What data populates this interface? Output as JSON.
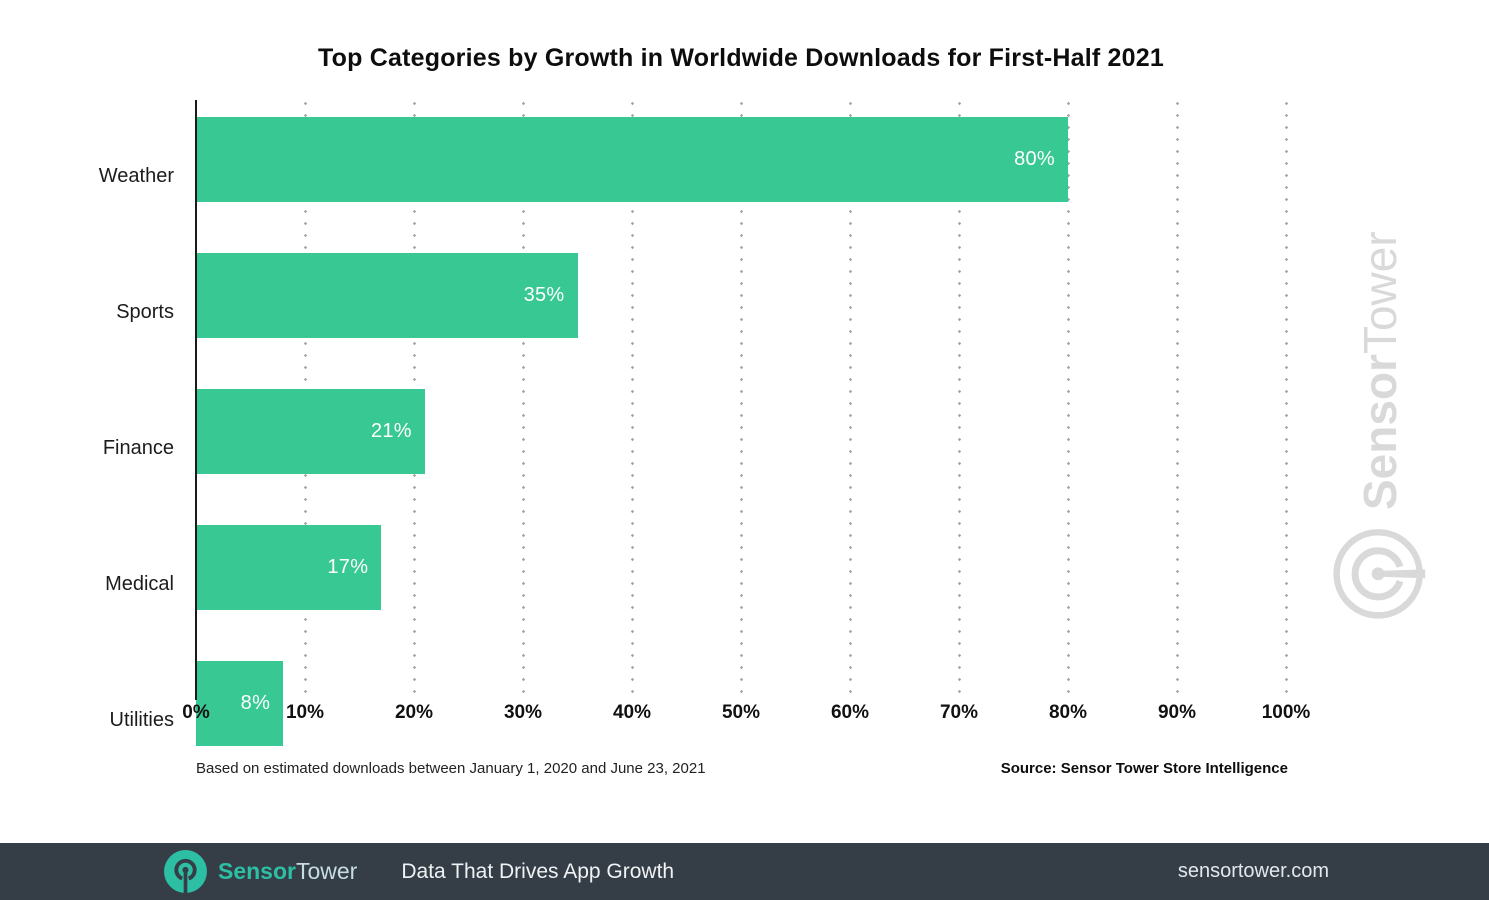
{
  "chart_data": {
    "type": "bar",
    "orientation": "horizontal",
    "title": "Top Categories by Growth in Worldwide Downloads for First-Half 2021",
    "categories": [
      "Weather",
      "Sports",
      "Finance",
      "Medical",
      "Utilities"
    ],
    "values": [
      80,
      35,
      21,
      17,
      8
    ],
    "value_labels": [
      "80%",
      "35%",
      "21%",
      "17%",
      "8%"
    ],
    "xlim": [
      0,
      100
    ],
    "x_ticks": [
      "0%",
      "10%",
      "20%",
      "30%",
      "40%",
      "50%",
      "60%",
      "70%",
      "80%",
      "90%",
      "100%"
    ],
    "grid": "dotted-vertical",
    "legend": "none",
    "bar_color": "#38c893"
  },
  "footnotes": {
    "based_on": "Based on estimated downloads between January 1, 2020 and June 23, 2021",
    "source": "Source: Sensor Tower Store Intelligence"
  },
  "watermark": {
    "logo": "sensortower-logo",
    "brand_bold": "Sensor",
    "brand_light": "Tower"
  },
  "footer": {
    "logo": "sensortower-logo",
    "brand_bold": "Sensor",
    "brand_light": "Tower",
    "tagline": "Data That Drives App Growth",
    "url": "sensortower.com"
  },
  "colors": {
    "bar": "#38c893",
    "grid_dot": "#a9a9a9",
    "footer_background": "#353d47",
    "brand_teal": "#2dbfa4",
    "watermark_gray": "#d9d9d9",
    "value_label": "#ffffff"
  }
}
